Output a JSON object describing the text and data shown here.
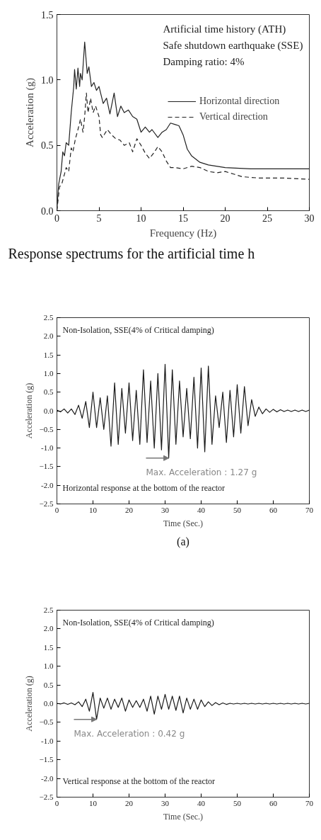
{
  "chart_data": [
    {
      "type": "line",
      "xlabel": "Frequency (Hz)",
      "ylabel": "Acceleration (g)",
      "xlim": [
        0,
        30
      ],
      "ylim": [
        0,
        1.5
      ],
      "xticks": [
        0,
        5,
        10,
        15,
        20,
        25,
        30
      ],
      "yticks": [
        {
          "value": 0,
          "label": "0.0"
        },
        {
          "value": 0.5,
          "label": "0.5"
        },
        {
          "value": 1,
          "label": "1.0"
        },
        {
          "value": 1.5,
          "label": "1.5"
        }
      ],
      "grid": false,
      "legend": "top right",
      "annotations": [
        "Artificial time history (ATH)",
        "Safe shutdown earthquake (SSE)",
        "Damping ratio: 4%",
        "Response spectrums for the artificial time h"
      ],
      "series": [
        {
          "name": "Horizontal direction",
          "color": "#222222",
          "line_style": "solid",
          "x": [
            0,
            0.2,
            0.5,
            0.7,
            0.9,
            1.1,
            1.4,
            1.7,
            2.0,
            2.1,
            2.3,
            2.5,
            2.7,
            2.8,
            3.0,
            3.3,
            3.6,
            3.8,
            4.1,
            4.4,
            4.7,
            5.0,
            5.5,
            5.9,
            6.3,
            6.8,
            7.2,
            7.6,
            8.0,
            8.5,
            9.0,
            9.5,
            10.0,
            10.5,
            11.0,
            11.3,
            12.0,
            12.5,
            13.0,
            13.5,
            14.0,
            14.5,
            15.0,
            15.5,
            16.0,
            17,
            18,
            20,
            23,
            26,
            30
          ],
          "values": [
            0,
            0.2,
            0.3,
            0.45,
            0.42,
            0.52,
            0.5,
            0.75,
            0.95,
            1.08,
            0.93,
            1.09,
            0.95,
            1.05,
            1.0,
            1.29,
            1.05,
            1.1,
            0.95,
            0.98,
            0.92,
            0.95,
            0.82,
            0.86,
            0.74,
            0.9,
            0.72,
            0.8,
            0.75,
            0.77,
            0.72,
            0.7,
            0.6,
            0.64,
            0.6,
            0.62,
            0.56,
            0.6,
            0.62,
            0.67,
            0.66,
            0.65,
            0.58,
            0.47,
            0.42,
            0.37,
            0.35,
            0.33,
            0.32,
            0.32,
            0.32
          ]
        },
        {
          "name": "Vertical direction",
          "color": "#222222",
          "line_style": "dashed",
          "x": [
            0,
            0.3,
            0.6,
            0.9,
            1.1,
            1.4,
            1.7,
            1.9,
            2.2,
            2.5,
            2.8,
            3.1,
            3.3,
            3.5,
            3.7,
            4.0,
            4.3,
            4.6,
            5.0,
            5.2,
            5.4,
            6.0,
            6.5,
            7.0,
            7.5,
            8.0,
            8.6,
            9.0,
            9.5,
            10.0,
            10.5,
            11.0,
            11.5,
            12.0,
            12.5,
            13.0,
            13.5,
            14.0,
            15,
            16,
            17,
            18,
            19,
            20,
            21,
            22,
            24,
            27,
            30
          ],
          "values": [
            0,
            0.18,
            0.21,
            0.28,
            0.33,
            0.3,
            0.48,
            0.45,
            0.55,
            0.62,
            0.7,
            0.6,
            0.72,
            0.9,
            0.75,
            0.86,
            0.75,
            0.8,
            0.72,
            0.58,
            0.56,
            0.62,
            0.58,
            0.55,
            0.54,
            0.5,
            0.52,
            0.45,
            0.55,
            0.5,
            0.44,
            0.4,
            0.44,
            0.49,
            0.45,
            0.38,
            0.33,
            0.33,
            0.32,
            0.34,
            0.33,
            0.3,
            0.29,
            0.3,
            0.28,
            0.26,
            0.25,
            0.25,
            0.24
          ]
        }
      ]
    },
    {
      "type": "line",
      "xlabel": "Time (Sec.)",
      "ylabel": "Acceleration (g)",
      "xlim": [
        0,
        70
      ],
      "ylim": [
        -2.5,
        2.5
      ],
      "xticks": [
        0,
        10,
        20,
        30,
        40,
        50,
        60,
        70
      ],
      "yticks": [
        -2.5,
        {
          "value": -2,
          "label": "-2.0"
        },
        -1.5,
        {
          "value": -1,
          "label": "-1.0"
        },
        -0.5,
        {
          "value": 0,
          "label": "0.0"
        },
        0.5,
        {
          "value": 1,
          "label": "1.0"
        },
        1.5,
        {
          "value": 2,
          "label": "2.0"
        },
        2.5
      ],
      "grid": false,
      "annotations": [
        "Non-Isolation, SSE(4% of Critical damping)",
        {
          "text": "Max. Acceleration : 1.27 g",
          "x": 31,
          "y": -1.27
        },
        "Horizontal response at the bottom of the reactor",
        "(a)"
      ],
      "series": [
        {
          "color": "#1a1a1a",
          "values": [
            0.02,
            -0.03,
            0.05,
            -0.06,
            0.05,
            -0.1,
            0.15,
            -0.2,
            0.25,
            -0.45,
            0.5,
            -0.45,
            0.35,
            -0.5,
            0.4,
            -0.95,
            0.75,
            -0.9,
            0.6,
            -0.6,
            0.75,
            -0.8,
            0.55,
            -0.9,
            1.1,
            -0.85,
            0.8,
            -1.0,
            1.0,
            -1.05,
            1.25,
            -1.27,
            1.1,
            -0.9,
            0.8,
            -0.7,
            0.6,
            -0.75,
            0.9,
            -1.0,
            1.15,
            -1.1,
            1.2,
            -0.9,
            0.4,
            -0.45,
            0.5,
            -0.85,
            0.55,
            -0.7,
            0.7,
            -0.6,
            0.65,
            -0.4,
            0.3,
            -0.15,
            0.1,
            -0.08,
            0.05,
            -0.04,
            0.04,
            -0.03,
            0.03,
            -0.02,
            0.02,
            -0.02,
            0.02,
            -0.02,
            0.02,
            -0.02,
            0.02
          ],
          "x": [
            0,
            1,
            2,
            3,
            4,
            5,
            6,
            7,
            8,
            9,
            10,
            11,
            12,
            13,
            14,
            15,
            16,
            17,
            18,
            19,
            20,
            21,
            22,
            23,
            24,
            25,
            26,
            27,
            28,
            29,
            30,
            31,
            32,
            33,
            34,
            35,
            36,
            37,
            38,
            39,
            40,
            41,
            42,
            43,
            44,
            45,
            46,
            47,
            48,
            49,
            50,
            51,
            52,
            53,
            54,
            55,
            56,
            57,
            58,
            59,
            60,
            61,
            62,
            63,
            64,
            65,
            66,
            67,
            68,
            69,
            70
          ]
        }
      ]
    },
    {
      "type": "line",
      "xlabel": "Time (Sec.)",
      "ylabel": "Acceleration (g)",
      "xlim": [
        0,
        70
      ],
      "ylim": [
        -2.5,
        2.5
      ],
      "xticks": [
        0,
        10,
        20,
        30,
        40,
        50,
        60,
        70
      ],
      "yticks": [
        -2.5,
        {
          "value": -2,
          "label": "-2.0"
        },
        -1.5,
        {
          "value": -1,
          "label": "-1.0"
        },
        -0.5,
        {
          "value": 0,
          "label": "0.0"
        },
        0.5,
        {
          "value": 1,
          "label": "1.0"
        },
        1.5,
        {
          "value": 2,
          "label": "2.0"
        },
        2.5
      ],
      "grid": false,
      "annotations": [
        "Non-Isolation, SSE(4% of Critical damping)",
        {
          "text": "Max. Acceleration : 0.42 g",
          "x": 11,
          "y": -0.42
        },
        "Vertical response at the bottom of the reactor"
      ],
      "series": [
        {
          "color": "#1a1a1a",
          "values": [
            0.01,
            -0.01,
            0.02,
            -0.02,
            0.02,
            -0.03,
            0.05,
            -0.08,
            0.12,
            -0.2,
            0.3,
            -0.42,
            0.15,
            -0.12,
            0.15,
            -0.15,
            0.12,
            -0.1,
            0.15,
            -0.2,
            0.1,
            -0.1,
            0.08,
            -0.1,
            0.12,
            -0.2,
            0.2,
            -0.28,
            0.2,
            -0.15,
            0.25,
            -0.15,
            0.2,
            -0.18,
            0.2,
            -0.25,
            0.15,
            -0.15,
            0.12,
            -0.15,
            0.1,
            -0.08,
            0.05,
            -0.05,
            0.03,
            -0.03,
            0.02,
            -0.02,
            0.01,
            -0.01,
            0.01,
            -0.01,
            0.01,
            -0.01,
            0.01,
            -0.01,
            0.01,
            -0.01,
            0.01,
            -0.01,
            0.01,
            -0.01,
            0.01,
            -0.01,
            0.01,
            -0.01,
            0.01,
            -0.01,
            0.01,
            -0.01,
            0.01
          ],
          "x": [
            0,
            1,
            2,
            3,
            4,
            5,
            6,
            7,
            8,
            9,
            10,
            11,
            12,
            13,
            14,
            15,
            16,
            17,
            18,
            19,
            20,
            21,
            22,
            23,
            24,
            25,
            26,
            27,
            28,
            29,
            30,
            31,
            32,
            33,
            34,
            35,
            36,
            37,
            38,
            39,
            40,
            41,
            42,
            43,
            44,
            45,
            46,
            47,
            48,
            49,
            50,
            51,
            52,
            53,
            54,
            55,
            56,
            57,
            58,
            59,
            60,
            61,
            62,
            63,
            64,
            65,
            66,
            67,
            68,
            69,
            70
          ]
        }
      ]
    }
  ]
}
